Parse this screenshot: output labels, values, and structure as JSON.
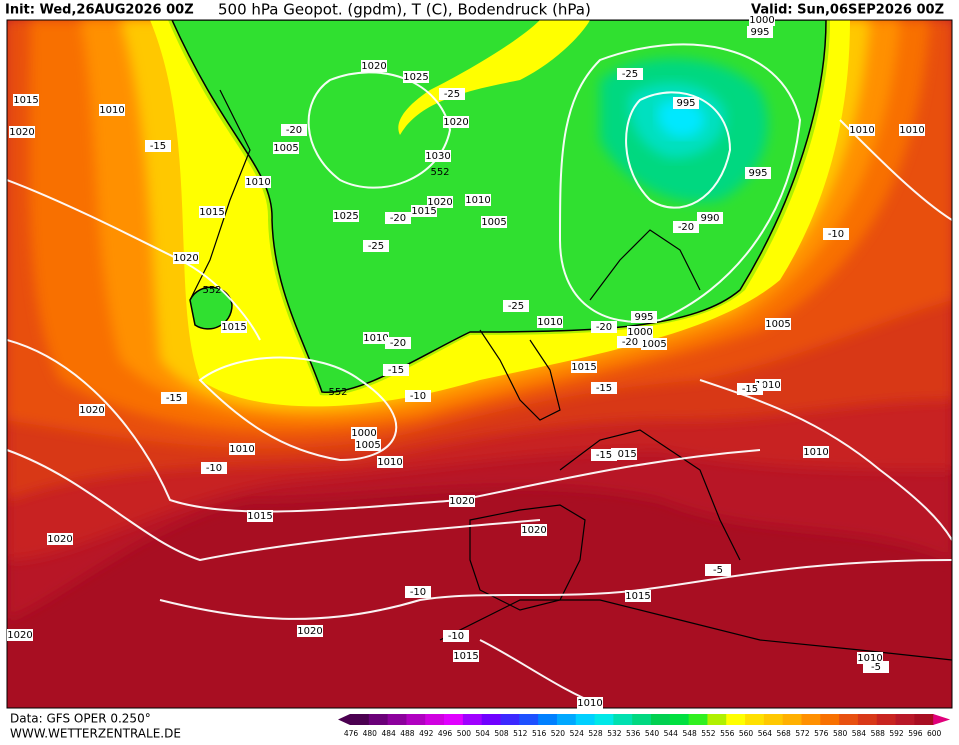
{
  "header": {
    "init": "Init: Wed,26AUG2026 00Z",
    "title": "500 hPa Geopot. (gpdm), T (C), Bodendruck (hPa)",
    "valid": "Valid: Sun,06SEP2026 00Z"
  },
  "footer": {
    "source": "Data: GFS OPER 0.250°",
    "site": "WWW.WETTERZENTRALE.DE"
  },
  "legend": {
    "values": [
      476,
      480,
      484,
      488,
      492,
      496,
      500,
      504,
      508,
      512,
      516,
      520,
      524,
      528,
      532,
      536,
      540,
      544,
      548,
      552,
      556,
      560,
      564,
      568,
      572,
      576,
      580,
      584,
      588,
      592,
      596,
      600
    ],
    "colors": [
      "#4b0050",
      "#6a0078",
      "#8c009c",
      "#b000c0",
      "#d000e0",
      "#e000ff",
      "#a000ff",
      "#7000ff",
      "#3c28ff",
      "#1e50ff",
      "#0080ff",
      "#00a8ff",
      "#00d0ff",
      "#00e8e8",
      "#00e0b0",
      "#00d880",
      "#00d050",
      "#00e040",
      "#30f020",
      "#b0f000",
      "#ffff00",
      "#ffe000",
      "#ffc800",
      "#ffb000",
      "#ff9000",
      "#f87000",
      "#e85010",
      "#d83818",
      "#c82420",
      "#b81828",
      "#a80e22",
      "#e0007a"
    ]
  },
  "map": {
    "isobars": [
      1015,
      1010,
      1020,
      1005,
      1010,
      1015,
      1020,
      1015,
      1010,
      1020,
      1010,
      1000,
      1005,
      1010,
      1015,
      1020,
      1020,
      1020,
      1020,
      1020,
      1015,
      1015,
      1010,
      1010,
      1010,
      1015,
      1015,
      1010,
      1005,
      1010,
      995,
      1000,
      1005,
      990,
      995,
      995,
      995,
      1000,
      1010,
      1010,
      1010,
      1005,
      1020,
      1015,
      1025,
      1030,
      1020,
      1025,
      1020
    ],
    "temperatures": [
      -25,
      -25,
      -20,
      -15,
      -20,
      -25,
      -25,
      -20,
      -10,
      -20,
      -20,
      -20,
      -15,
      -10,
      -15,
      -10,
      -15,
      -15,
      -15,
      -10,
      -10,
      -5,
      -5
    ],
    "geopotential": [
      552,
      552,
      552
    ]
  }
}
